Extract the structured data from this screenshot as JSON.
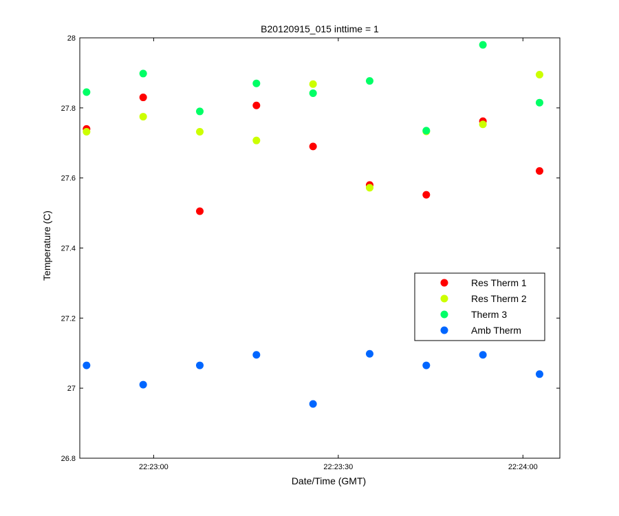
{
  "chart_data": {
    "type": "scatter",
    "title": "B20120915_015 inttime = 1",
    "xlabel": "Date/Time (GMT)",
    "ylabel": "Temperature (C)",
    "x_axis": {
      "unit": "seconds after 22:22:48 GMT",
      "range": [
        0,
        78
      ],
      "ticks": [
        {
          "x": 12,
          "label": "22:23:00"
        },
        {
          "x": 42,
          "label": "22:23:30"
        },
        {
          "x": 72,
          "label": "22:24:00"
        }
      ]
    },
    "ylim": [
      26.8,
      28
    ],
    "yticks": [
      "26.8",
      "27",
      "27.2",
      "27.4",
      "27.6",
      "27.8",
      "28"
    ],
    "grid": false,
    "legend_position": "lower-right",
    "x": [
      1.1,
      10.3,
      19.5,
      28.7,
      37.9,
      47.1,
      56.3,
      65.5,
      74.7
    ],
    "series": [
      {
        "name": "Res Therm 1",
        "color": "#ff0000",
        "values": [
          27.74,
          27.83,
          27.505,
          27.807,
          27.69,
          27.58,
          27.552,
          27.762,
          27.62
        ]
      },
      {
        "name": "Res Therm 2",
        "color": "#ccff00",
        "values": [
          27.732,
          27.775,
          27.732,
          27.707,
          27.868,
          27.572,
          27.733,
          27.753,
          27.895
        ]
      },
      {
        "name": "Therm 3",
        "color": "#00ff66",
        "values": [
          27.845,
          27.898,
          27.79,
          27.87,
          27.842,
          27.877,
          27.735,
          27.98,
          27.815
        ]
      },
      {
        "name": "Amb Therm",
        "color": "#0066ff",
        "values": [
          27.065,
          27.01,
          27.065,
          27.095,
          26.955,
          27.098,
          27.065,
          27.095,
          27.04
        ]
      }
    ]
  }
}
